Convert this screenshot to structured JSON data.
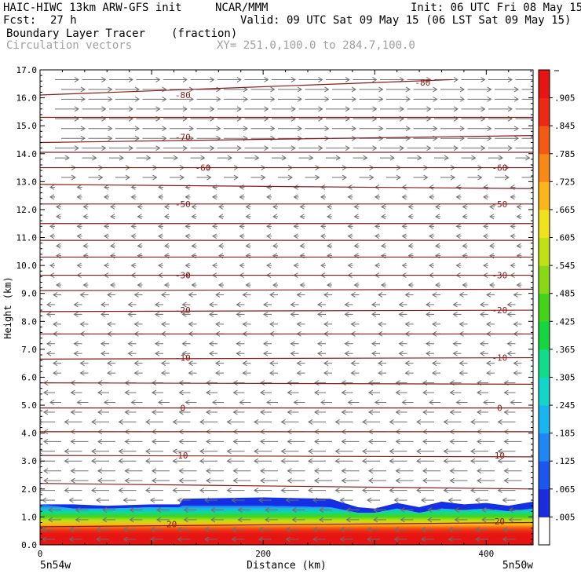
{
  "header": {
    "model": "HAIC-HIWC 13km ARW-GFS init",
    "org": "NCAR/MMM",
    "init": "Init: 06 UTC Fri 08 May 15",
    "fcst_label": "Fcst:",
    "fcst_value": "27 h",
    "valid": "Valid: 09 UTC Sat 09 May 15 (06 LST Sat 09 May 15)",
    "field": "Boundary Layer Tracer",
    "field_units": "(fraction)",
    "vectors": "Circulation vectors",
    "xy": "XY= 251.0,100.0 to 284.7,100.0"
  },
  "chart_data": {
    "type": "heatmap",
    "xlabel": "Distance (km)",
    "ylabel": "Height (km)",
    "xlim": [
      0,
      442
    ],
    "ylim": [
      0,
      17
    ],
    "x_ticks": [
      0,
      200,
      400
    ],
    "y_ticks": [
      "0.0",
      "1.0",
      "2.0",
      "3.0",
      "4.0",
      "5.0",
      "6.0",
      "7.0",
      "8.0",
      "9.0",
      "10.0",
      "11.0",
      "12.0",
      "13.0",
      "14.0",
      "15.0",
      "16.0",
      "17.0"
    ],
    "x_endpoint_labels": [
      "5n54w",
      "5n50w"
    ],
    "colorbar": {
      "labels": [
        ".005",
        ".065",
        ".125",
        ".185",
        ".245",
        ".305",
        ".365",
        ".425",
        ".485",
        ".545",
        ".605",
        ".665",
        ".725",
        ".785",
        ".845",
        ".905"
      ],
      "colors": [
        "#ffffff",
        "#1a2be0",
        "#1c56ee",
        "#1e86f5",
        "#1ab5ee",
        "#12d6c9",
        "#10dc8c",
        "#16d640",
        "#44d31a",
        "#88d816",
        "#c2e016",
        "#f2e21c",
        "#fbb618",
        "#f98916",
        "#f45a14",
        "#ec2a14",
        "#e61412"
      ]
    },
    "tracer_top": [
      {
        "x": 0,
        "top": 1.45,
        "blue": 0.0
      },
      {
        "x": 30,
        "top": 1.45,
        "blue": 0.15
      },
      {
        "x": 60,
        "top": 1.4,
        "blue": 0.1
      },
      {
        "x": 100,
        "top": 1.45,
        "blue": 0.1
      },
      {
        "x": 125,
        "top": 1.45,
        "blue": 0.1
      },
      {
        "x": 128,
        "top": 1.65,
        "blue": 0.25
      },
      {
        "x": 200,
        "top": 1.7,
        "blue": 0.3
      },
      {
        "x": 260,
        "top": 1.65,
        "blue": 0.3
      },
      {
        "x": 285,
        "top": 1.35,
        "blue": 0.2
      },
      {
        "x": 300,
        "top": 1.3,
        "blue": 0.15
      },
      {
        "x": 320,
        "top": 1.5,
        "blue": 0.2
      },
      {
        "x": 340,
        "top": 1.35,
        "blue": 0.2
      },
      {
        "x": 360,
        "top": 1.55,
        "blue": 0.25
      },
      {
        "x": 380,
        "top": 1.45,
        "blue": 0.2
      },
      {
        "x": 400,
        "top": 1.5,
        "blue": 0.2
      },
      {
        "x": 420,
        "top": 1.4,
        "blue": 0.2
      },
      {
        "x": 442,
        "top": 1.55,
        "blue": 0.25
      }
    ],
    "contours": [
      {
        "label": "20",
        "levels": [
          {
            "x": 0,
            "y": 0.65
          },
          {
            "x": 442,
            "y": 0.8
          }
        ],
        "label_positions": [
          {
            "x": 118,
            "y": 0.75
          },
          {
            "x": 412,
            "y": 0.85
          }
        ]
      },
      {
        "label": "",
        "levels": [
          {
            "x": 0,
            "y": 2.2
          },
          {
            "x": 442,
            "y": 2.0
          }
        ],
        "label_positions": []
      },
      {
        "label": "10",
        "levels": [
          {
            "x": 0,
            "y": 3.2
          },
          {
            "x": 442,
            "y": 3.15
          }
        ],
        "label_positions": [
          {
            "x": 128,
            "y": 3.2
          },
          {
            "x": 412,
            "y": 3.2
          }
        ]
      },
      {
        "label": "",
        "levels": [
          {
            "x": 0,
            "y": 4.05
          },
          {
            "x": 442,
            "y": 4.05
          }
        ],
        "label_positions": []
      },
      {
        "label": "0",
        "levels": [
          {
            "x": 0,
            "y": 4.9
          },
          {
            "x": 442,
            "y": 4.9
          }
        ],
        "label_positions": [
          {
            "x": 128,
            "y": 4.9
          },
          {
            "x": 412,
            "y": 4.9
          }
        ]
      },
      {
        "label": "",
        "levels": [
          {
            "x": 0,
            "y": 5.8
          },
          {
            "x": 442,
            "y": 5.75
          }
        ],
        "label_positions": []
      },
      {
        "label": "-10",
        "levels": [
          {
            "x": 0,
            "y": 6.65
          },
          {
            "x": 442,
            "y": 6.7
          }
        ],
        "label_positions": [
          {
            "x": 128,
            "y": 6.7
          },
          {
            "x": 412,
            "y": 6.7
          }
        ]
      },
      {
        "label": "",
        "levels": [
          {
            "x": 0,
            "y": 7.55
          },
          {
            "x": 442,
            "y": 7.55
          }
        ],
        "label_positions": []
      },
      {
        "label": "-20",
        "levels": [
          {
            "x": 0,
            "y": 8.35
          },
          {
            "x": 442,
            "y": 8.4
          }
        ],
        "label_positions": [
          {
            "x": 128,
            "y": 8.4
          },
          {
            "x": 412,
            "y": 8.4
          }
        ]
      },
      {
        "label": "",
        "levels": [
          {
            "x": 0,
            "y": 9.1
          },
          {
            "x": 442,
            "y": 9.15
          }
        ],
        "label_positions": []
      },
      {
        "label": "-30",
        "levels": [
          {
            "x": 0,
            "y": 9.65
          },
          {
            "x": 442,
            "y": 9.65
          }
        ],
        "label_positions": [
          {
            "x": 128,
            "y": 9.65
          },
          {
            "x": 412,
            "y": 9.65
          }
        ]
      },
      {
        "label": "",
        "levels": [
          {
            "x": 0,
            "y": 10.3
          },
          {
            "x": 442,
            "y": 10.3
          }
        ],
        "label_positions": []
      },
      {
        "label": "",
        "levels": [
          {
            "x": 0,
            "y": 10.9
          },
          {
            "x": 442,
            "y": 10.9
          }
        ],
        "label_positions": []
      },
      {
        "label": "",
        "levels": [
          {
            "x": 0,
            "y": 11.5
          },
          {
            "x": 442,
            "y": 11.5
          }
        ],
        "label_positions": []
      },
      {
        "label": "-50",
        "levels": [
          {
            "x": 0,
            "y": 12.2
          },
          {
            "x": 442,
            "y": 12.2
          }
        ],
        "label_positions": [
          {
            "x": 128,
            "y": 12.2
          },
          {
            "x": 412,
            "y": 12.2
          }
        ]
      },
      {
        "label": "",
        "levels": [
          {
            "x": 0,
            "y": 12.9
          },
          {
            "x": 442,
            "y": 12.75
          }
        ],
        "label_positions": []
      },
      {
        "label": "-60",
        "levels": [
          {
            "x": 0,
            "y": 13.5
          },
          {
            "x": 442,
            "y": 13.5
          }
        ],
        "label_positions": [
          {
            "x": 146,
            "y": 13.5
          },
          {
            "x": 412,
            "y": 13.5
          }
        ]
      },
      {
        "label": "",
        "levels": [
          {
            "x": 0,
            "y": 14.05
          },
          {
            "x": 442,
            "y": 14.05
          }
        ],
        "label_positions": []
      },
      {
        "label": "-70",
        "levels": [
          {
            "x": 0,
            "y": 14.4
          },
          {
            "x": 442,
            "y": 14.65
          }
        ],
        "label_positions": [
          {
            "x": 128,
            "y": 14.6
          }
        ]
      },
      {
        "label": "",
        "levels": [
          {
            "x": 0,
            "y": 15.3
          },
          {
            "x": 442,
            "y": 15.3
          }
        ],
        "label_positions": []
      },
      {
        "label": "-80",
        "levels": [
          {
            "x": 0,
            "y": 16.1
          },
          {
            "x": 370,
            "y": 16.65
          }
        ],
        "label_positions": [
          {
            "x": 128,
            "y": 16.1
          },
          {
            "x": 343,
            "y": 16.55
          }
        ]
      }
    ]
  }
}
